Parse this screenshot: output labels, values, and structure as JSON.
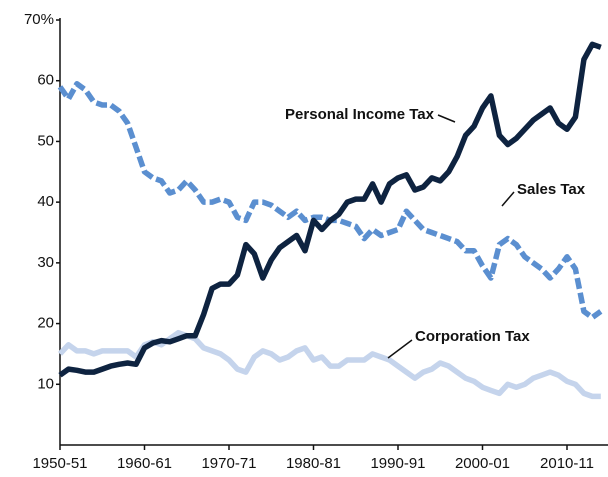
{
  "chart_data": {
    "type": "line",
    "categories": [
      "1950-51",
      null,
      null,
      null,
      null,
      null,
      null,
      null,
      null,
      null,
      "1960-61",
      null,
      null,
      null,
      null,
      null,
      null,
      null,
      null,
      null,
      "1970-71",
      null,
      null,
      null,
      null,
      null,
      null,
      null,
      null,
      null,
      "1980-81",
      null,
      null,
      null,
      null,
      null,
      null,
      null,
      null,
      null,
      "1990-91",
      null,
      null,
      null,
      null,
      null,
      null,
      null,
      null,
      null,
      "2000-01",
      null,
      null,
      null,
      null,
      null,
      null,
      null,
      null,
      null,
      "2010-11",
      null,
      null,
      null,
      null
    ],
    "series": [
      {
        "name": "Personal Income Tax",
        "color": "#0e2340",
        "dash": false,
        "values": [
          11.5,
          12.5,
          12.3,
          12.0,
          12.0,
          12.5,
          13.0,
          13.3,
          13.5,
          13.3,
          16.0,
          16.8,
          17.2,
          17.0,
          17.5,
          18.0,
          18.0,
          21.5,
          25.8,
          26.5,
          26.5,
          28.0,
          33.0,
          31.5,
          27.5,
          30.5,
          32.5,
          33.5,
          34.5,
          32.0,
          37.0,
          35.5,
          37.0,
          38.0,
          40.0,
          40.5,
          40.5,
          43.0,
          40.0,
          43.0,
          44.0,
          44.5,
          42.0,
          42.5,
          44.0,
          43.5,
          45.0,
          47.5,
          51.0,
          52.5,
          55.5,
          57.5,
          51.0,
          49.5,
          50.5,
          52.0,
          53.5,
          54.5,
          55.5,
          53.0,
          52.0,
          54.0,
          63.5,
          66.0,
          65.5
        ]
      },
      {
        "name": "Sales Tax",
        "color": "#5b8fd0",
        "dash": true,
        "values": [
          59,
          57,
          59.5,
          58.5,
          56.5,
          56,
          56,
          55,
          53,
          49,
          45,
          44,
          43.5,
          41.5,
          42,
          43.5,
          42,
          40,
          40,
          40.5,
          40,
          37.5,
          37,
          40,
          40,
          39.5,
          38.5,
          37.5,
          38.5,
          37,
          37.5,
          37.5,
          37,
          37,
          36.5,
          36,
          34,
          35.5,
          34.5,
          35,
          35.5,
          38.5,
          37,
          35.5,
          35,
          34.5,
          34,
          33.5,
          32,
          32,
          29.5,
          27.5,
          33,
          34,
          33,
          31,
          30,
          29,
          27.5,
          29,
          31,
          29,
          22,
          21,
          22
        ]
      },
      {
        "name": "Corporation Tax",
        "color": "#c5d4ec",
        "dash": false,
        "values": [
          15,
          16.5,
          15.5,
          15.5,
          15,
          15.5,
          15.5,
          15.5,
          15.5,
          14.5,
          16.5,
          17,
          16.5,
          17.5,
          18.5,
          18,
          17.5,
          16,
          15.5,
          15,
          14,
          12.5,
          12,
          14.5,
          15.5,
          15,
          14,
          14.5,
          15.5,
          16,
          14,
          14.5,
          13,
          13,
          14,
          14,
          14,
          15,
          14.5,
          14,
          13,
          12,
          11,
          12,
          12.5,
          13.5,
          13,
          12,
          11,
          10.5,
          9.5,
          9,
          8.5,
          10,
          9.5,
          10,
          11,
          11.5,
          12,
          11.5,
          10.5,
          10,
          8.5,
          8,
          8
        ]
      }
    ],
    "ylim": [
      0,
      70
    ],
    "yticks": [
      10,
      20,
      30,
      40,
      50,
      60,
      {
        "value": 70,
        "label": "70%"
      }
    ],
    "grid": false
  }
}
